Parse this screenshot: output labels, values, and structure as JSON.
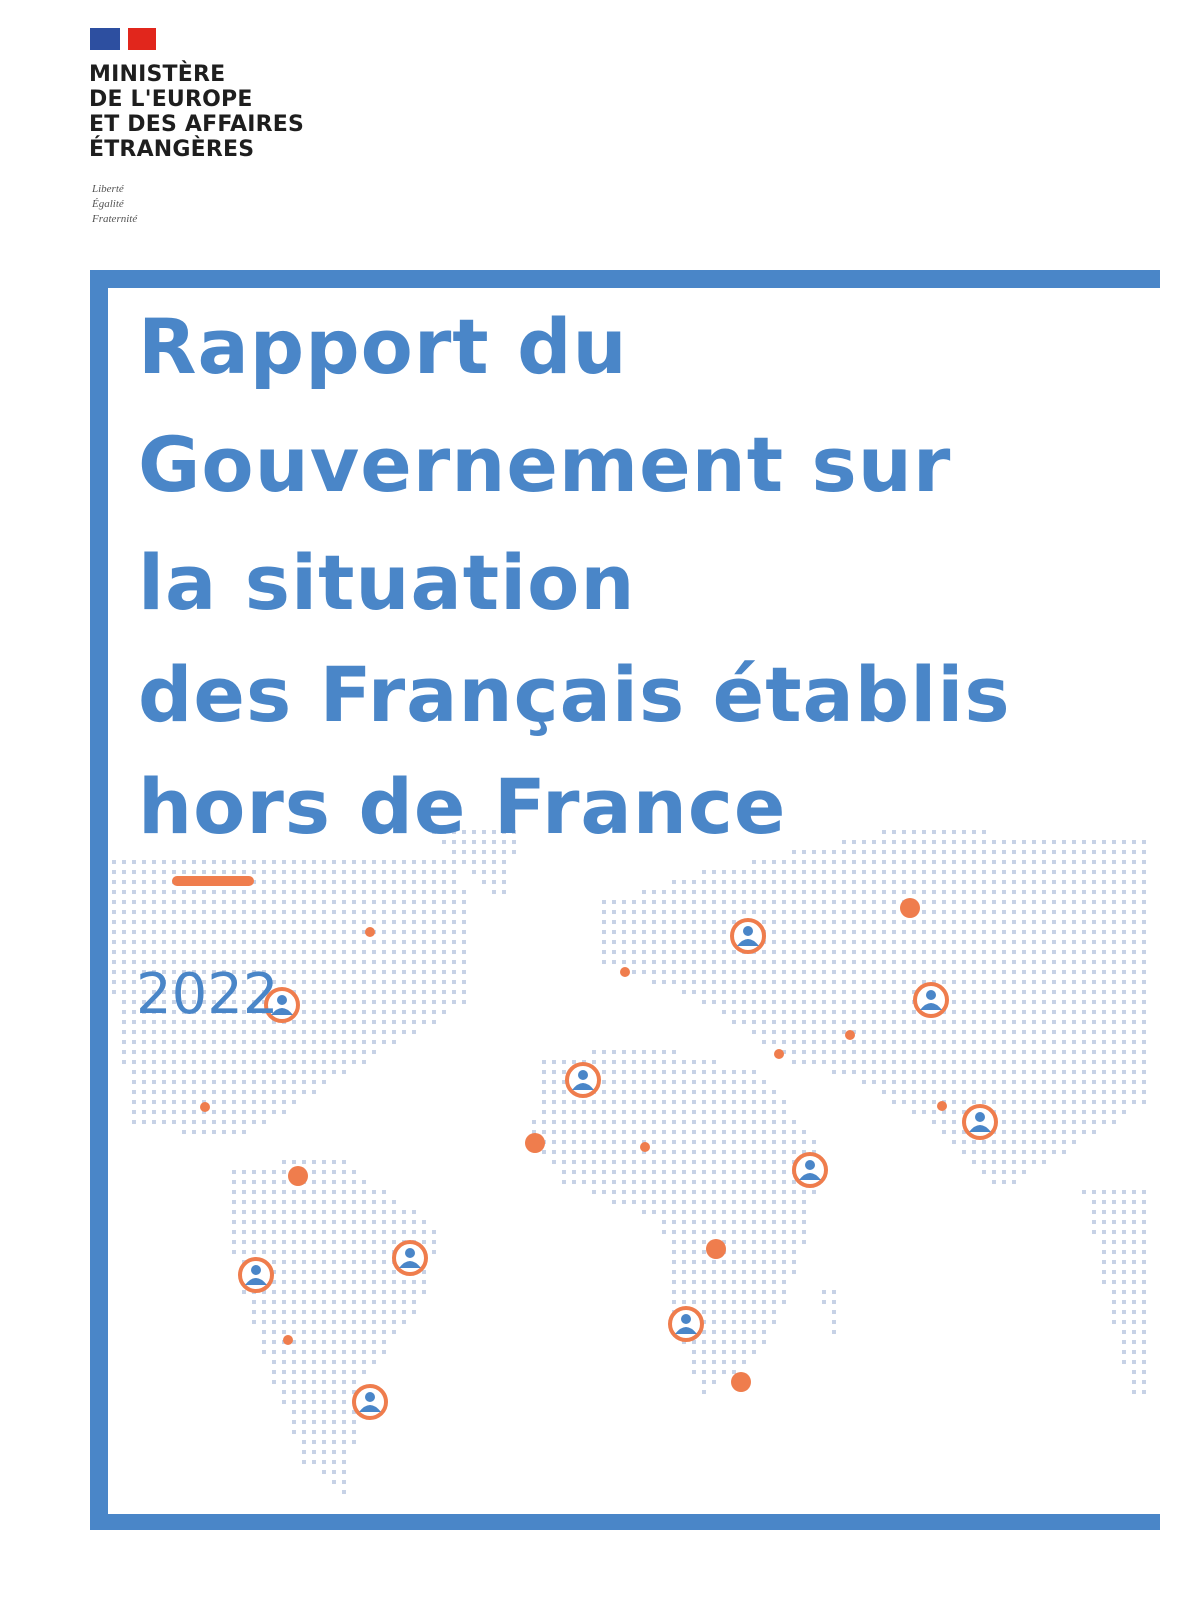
{
  "logo": {
    "ministry_lines": [
      "MINISTÈRE",
      "DE L'EUROPE",
      "ET DES AFFAIRES",
      "ÉTRANGÈRES"
    ],
    "motto": [
      "Liberté",
      "Égalité",
      "Fraternité"
    ]
  },
  "cover": {
    "title_lines": [
      "Rapport du",
      "Gouvernement sur",
      "la situation",
      "des Français établis",
      "hors de France"
    ],
    "year": "2022"
  },
  "colors": {
    "accent_blue": "#4a86c8",
    "accent_orange": "#ef7d4d",
    "map_dots": "#c7d2e6"
  },
  "icons": {
    "map_marker": "person-pin-icon",
    "map_point": "dot-icon"
  }
}
